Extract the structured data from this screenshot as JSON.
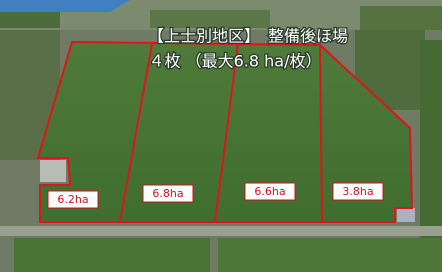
{
  "title": {
    "line1": "【上士別地区】　整備後ほ場",
    "line2": "４枚 （最大6.8 ha/枚）"
  },
  "fields": [
    {
      "label": "6.2ha"
    },
    {
      "label": "6.8ha"
    },
    {
      "label": "6.6ha"
    },
    {
      "label": "3.8ha"
    }
  ]
}
